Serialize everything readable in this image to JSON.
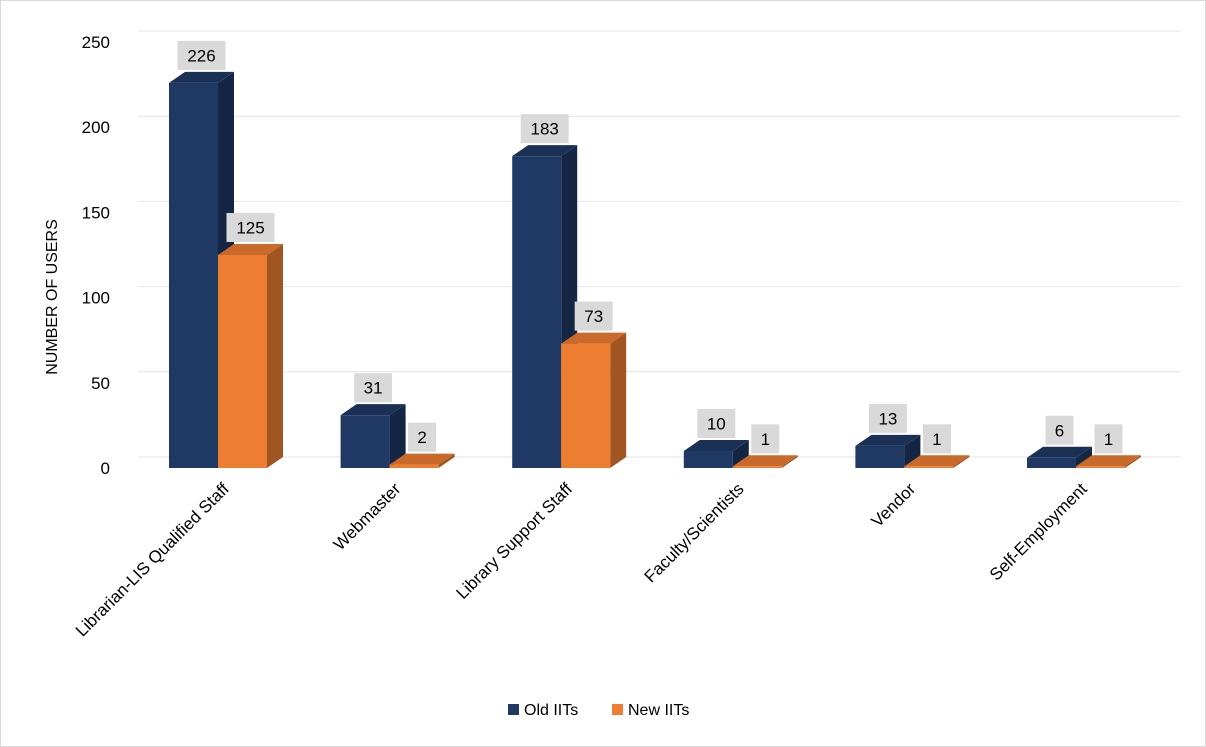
{
  "chart_data": {
    "type": "bar",
    "title": "",
    "xlabel": "",
    "ylabel": "NUMBER OF USERS",
    "categories": [
      "Librarian-LIS Qualified Staff",
      "Webmaster",
      "Library Support Staff",
      "Faculty/Scientists",
      "Vendor",
      "Self-Employment"
    ],
    "series": [
      {
        "name": "Old IITs",
        "values": [
          226,
          31,
          183,
          10,
          13,
          6
        ],
        "color": "#1f3864"
      },
      {
        "name": "New IITs",
        "values": [
          125,
          2,
          73,
          1,
          1,
          1
        ],
        "color": "#ed7d31"
      }
    ],
    "ylim": [
      0,
      250
    ],
    "yticks": [
      "0",
      "50",
      "100",
      "150",
      "200",
      "250"
    ],
    "grid": true,
    "legend": "bottom",
    "style": "3d-clustered-column"
  }
}
